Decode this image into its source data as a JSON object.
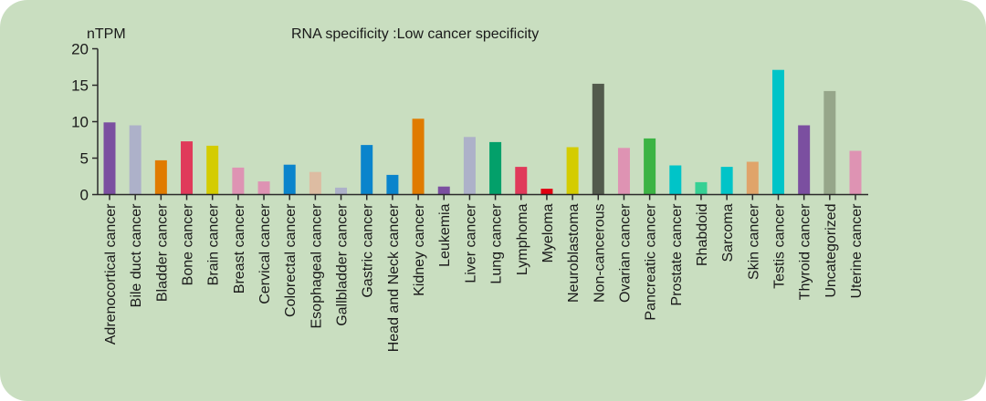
{
  "chart_data": {
    "type": "bar",
    "title": "RNA specificity :Low cancer specificity",
    "xlabel": "",
    "ylabel": "nTPM",
    "ylim": [
      0,
      20
    ],
    "yticks": [
      0,
      5,
      10,
      15,
      20
    ],
    "grid": false,
    "categories": [
      "Adrenocortical cancer",
      "Bile duct cancer",
      "Bladder cancer",
      "Bone cancer",
      "Brain cancer",
      "Breast cancer",
      "Cervical cancer",
      "Colorectal cancer",
      "Esophageal cancer",
      "Gallbladder cancer",
      "Gastric cancer",
      "Head and Neck cancer",
      "Kidney cancer",
      "Leukemia",
      "Liver cancer",
      "Lung cancer",
      "Lymphoma",
      "Myeloma",
      "Neuroblastoma",
      "Non-cancerous",
      "Ovarian cancer",
      "Pancreatic cancer",
      "Prostate cancer",
      "Rhabdoid",
      "Sarcoma",
      "Skin cancer",
      "Testis cancer",
      "Thyroid cancer",
      "Uncategorized",
      "Uterine cancer"
    ],
    "values": [
      9.9,
      9.5,
      4.7,
      7.3,
      6.7,
      3.7,
      1.8,
      4.1,
      3.1,
      0.95,
      6.8,
      2.7,
      10.4,
      1.1,
      7.9,
      7.2,
      3.8,
      0.8,
      6.5,
      15.2,
      6.4,
      7.7,
      4.0,
      1.7,
      3.8,
      4.5,
      17.1,
      9.5,
      14.2,
      6.0
    ],
    "colors": [
      "#7b4fa0",
      "#adb1c9",
      "#e07b00",
      "#e03a5a",
      "#d4cc00",
      "#de93b3",
      "#de93b3",
      "#0a84cc",
      "#ddbca2",
      "#adb1c9",
      "#0a84cc",
      "#0a84cc",
      "#e07b00",
      "#7b4fa0",
      "#adb1c9",
      "#03a06a",
      "#e03a5a",
      "#e00010",
      "#d4cc00",
      "#525a4c",
      "#de93b3",
      "#3cb344",
      "#00c4c8",
      "#36d094",
      "#00c4c8",
      "#e0a46a",
      "#00c4c8",
      "#7b4fa0",
      "#96a68a",
      "#de93b3"
    ]
  }
}
